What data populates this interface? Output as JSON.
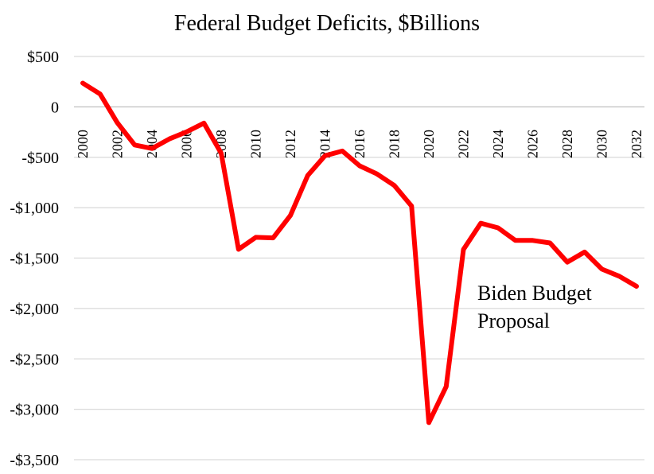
{
  "chart_data": {
    "type": "line",
    "title": "Federal Budget Deficits, $Billions",
    "xlabel": "",
    "ylabel": "",
    "ylim": [
      -3500,
      500
    ],
    "y_ticks": [
      500,
      0,
      -500,
      -1000,
      -1500,
      -2000,
      -2500,
      -3000,
      -3500
    ],
    "y_tick_labels": [
      "$500",
      "0",
      "-$500",
      "-$1,000",
      "-$1,500",
      "-$2,000",
      "-$2,500",
      "-$3,000",
      "-$3,500"
    ],
    "x_ticks": [
      "2000",
      "2002",
      "2004",
      "2006",
      "2008",
      "2010",
      "2012",
      "2014",
      "2016",
      "2018",
      "2020",
      "2022",
      "2024",
      "2026",
      "2028",
      "2030",
      "2032"
    ],
    "grid": true,
    "legend": "none",
    "series": [
      {
        "color": "#ff0000",
        "x": [
          2000,
          2001,
          2002,
          2003,
          2004,
          2005,
          2006,
          2007,
          2008,
          2009,
          2010,
          2011,
          2012,
          2013,
          2014,
          2015,
          2016,
          2017,
          2018,
          2019,
          2020,
          2021,
          2022,
          2023,
          2024,
          2025,
          2026,
          2027,
          2028,
          2029,
          2030,
          2031,
          2032
        ],
        "values": [
          236,
          128,
          -158,
          -378,
          -413,
          -318,
          -248,
          -161,
          -459,
          -1413,
          -1294,
          -1300,
          -1077,
          -680,
          -485,
          -438,
          -585,
          -665,
          -779,
          -984,
          -3132,
          -2775,
          -1415,
          -1154,
          -1200,
          -1325,
          -1325,
          -1350,
          -1540,
          -1440,
          -1610,
          -1680,
          -1780
        ]
      }
    ],
    "annotations": [
      "Biden Budget",
      "Proposal"
    ]
  }
}
